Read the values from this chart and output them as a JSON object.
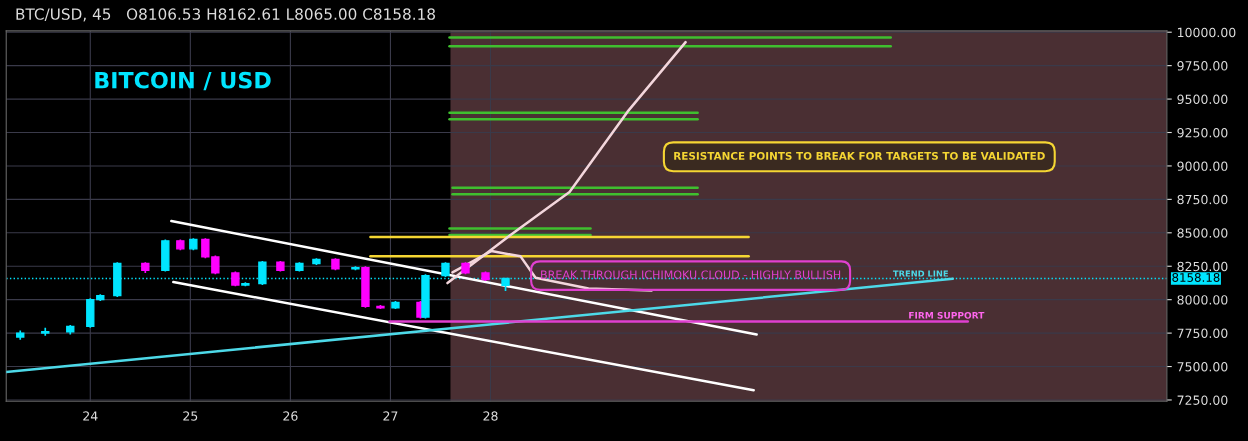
{
  "chart_data": {
    "type": "candlestick",
    "title": "BITCOIN / USD",
    "subtitle": "BTC/USD, 45   O8106.53 H8162.61 L8065.00 C8158.18",
    "x": [
      23.3,
      23.55,
      23.8,
      24.0,
      24.1,
      24.27,
      24.55,
      24.75,
      24.9,
      25.03,
      25.15,
      25.25,
      25.45,
      25.55,
      25.72,
      25.9,
      26.09,
      26.26,
      26.45,
      26.65,
      26.75,
      26.9,
      27.05,
      27.3,
      27.35,
      27.55,
      27.75,
      27.95,
      28.15
    ],
    "ohlc": [
      [
        7720,
        7770,
        7700,
        7750
      ],
      [
        7750,
        7790,
        7730,
        7760
      ],
      [
        7760,
        7810,
        7740,
        7800
      ],
      [
        7800,
        8010,
        7790,
        8000
      ],
      [
        8000,
        8040,
        7990,
        8030
      ],
      [
        8030,
        8280,
        8020,
        8270
      ],
      [
        8270,
        8280,
        8200,
        8220
      ],
      [
        8220,
        8450,
        8210,
        8440
      ],
      [
        8440,
        8450,
        8370,
        8380
      ],
      [
        8380,
        8460,
        8370,
        8450
      ],
      [
        8450,
        8460,
        8310,
        8320
      ],
      [
        8320,
        8330,
        8190,
        8200
      ],
      [
        8200,
        8210,
        8100,
        8110
      ],
      [
        8110,
        8130,
        8100,
        8120
      ],
      [
        8120,
        8290,
        8110,
        8280
      ],
      [
        8280,
        8290,
        8210,
        8220
      ],
      [
        8220,
        8280,
        8210,
        8270
      ],
      [
        8270,
        8310,
        8260,
        8300
      ],
      [
        8300,
        8310,
        8220,
        8230
      ],
      [
        8230,
        8250,
        8220,
        8240
      ],
      [
        8240,
        8250,
        7940,
        7950
      ],
      [
        7950,
        7960,
        7930,
        7940
      ],
      [
        7940,
        7990,
        7930,
        7980
      ],
      [
        7980,
        7990,
        7860,
        7870
      ],
      [
        7870,
        8190,
        7860,
        8180
      ],
      [
        8180,
        8280,
        8170,
        8270
      ],
      [
        8270,
        8280,
        8190,
        8200
      ],
      [
        8200,
        8210,
        8140,
        8150
      ],
      [
        8106.53,
        8162.61,
        8065.0,
        8158.18
      ]
    ],
    "series": [
      {
        "type": "line",
        "color": "#3fbf2f",
        "x": [
          27.59,
          32.0
        ],
        "values": [
          9960,
          9960
        ]
      },
      {
        "type": "line",
        "color": "#3fbf2f",
        "x": [
          27.59,
          32.0
        ],
        "values": [
          9895,
          9895
        ]
      },
      {
        "type": "line",
        "color": "#3fbf2f",
        "x": [
          27.59,
          30.07
        ],
        "values": [
          9397,
          9397
        ]
      },
      {
        "type": "line",
        "color": "#3fbf2f",
        "x": [
          27.59,
          30.07
        ],
        "values": [
          9349,
          9349
        ]
      },
      {
        "type": "line",
        "color": "#3fbf2f",
        "x": [
          27.62,
          30.07
        ],
        "values": [
          8837,
          8837
        ]
      },
      {
        "type": "line",
        "color": "#3fbf2f",
        "x": [
          27.62,
          30.07
        ],
        "values": [
          8789,
          8789
        ]
      },
      {
        "type": "line",
        "color": "#3fbf2f",
        "x": [
          27.59,
          29.0
        ],
        "values": [
          8532,
          8532
        ]
      },
      {
        "type": "line",
        "color": "#3fbf2f",
        "x": [
          27.59,
          29.0
        ],
        "values": [
          8484,
          8484
        ]
      },
      {
        "type": "line",
        "color": "#f5d633",
        "x": [
          26.8,
          30.58
        ],
        "values": [
          8468,
          8468
        ]
      },
      {
        "type": "line",
        "color": "#f5d633",
        "x": [
          26.8,
          30.58
        ],
        "values": [
          8324,
          8324
        ]
      },
      {
        "type": "line",
        "color": "#ffffff",
        "x": [
          24.81,
          30.66
        ],
        "values": [
          8588,
          7739
        ]
      },
      {
        "type": "line",
        "color": "#ffffff",
        "x": [
          24.83,
          30.63
        ],
        "values": [
          8132,
          7323
        ]
      },
      {
        "type": "line",
        "color": "#4dd9e8",
        "x": [
          23.16,
          32.62
        ],
        "values": [
          7459,
          8156
        ]
      },
      {
        "type": "line",
        "color": "#e040d0",
        "x": [
          26.99,
          32.77
        ],
        "values": [
          7836,
          7836
        ]
      },
      {
        "type": "line",
        "color": "#f3d6dc",
        "x": [
          27.57,
          28.2,
          28.79,
          29.37,
          29.95
        ],
        "values": [
          8124,
          8484,
          8805,
          9406,
          9926
        ]
      },
      {
        "type": "line",
        "color": "#f3d6dc",
        "x": [
          27.62,
          28.01,
          28.3,
          28.45,
          28.98,
          29.61
        ],
        "values": [
          8204,
          8364,
          8324,
          8164,
          8084,
          8068
        ]
      }
    ],
    "ref_lines": [
      {
        "axis": "y",
        "value": 8158.18,
        "label": "8158.18",
        "color": "#00e5ff",
        "line_style": "dotted"
      }
    ],
    "bands": [
      {
        "axis": "x",
        "from": 27.6,
        "to": 34.76,
        "color": "#4a2f33"
      }
    ],
    "annotations": [
      "RESISTANCE POINTS TO BREAK FOR TARGETS TO BE VALIDATED",
      {
        "text": "BREAK THROUGH ICHIMOKU CLOUD - HIGHLY BULLISH",
        "x": 30.0,
        "y": 8180
      },
      {
        "text": "TREND LINE",
        "x": 32.3,
        "y": 8190
      },
      "FIRM SUPPORT"
    ],
    "xlim": [
      23.16,
      34.76
    ],
    "xticks": [
      24,
      25,
      26,
      27,
      28
    ],
    "ylim": [
      7240,
      10010
    ],
    "yticks": [
      {
        "value": 7250,
        "label": "7250.00"
      },
      {
        "value": 7500,
        "label": "7500.00"
      },
      {
        "value": 7750,
        "label": "7750.00"
      },
      {
        "value": 8000,
        "label": "8000.00"
      },
      {
        "value": 8250,
        "label": "8250.00"
      },
      {
        "value": 8500,
        "label": "8500.00"
      },
      {
        "value": 8750,
        "label": "8750.00"
      },
      {
        "value": 9000,
        "label": "9000.00"
      },
      {
        "value": 9250,
        "label": "9250.00"
      },
      {
        "value": 9500,
        "label": "9500.00"
      },
      {
        "value": 9750,
        "label": "9750.00"
      },
      {
        "value": 10000,
        "label": "10000.00"
      }
    ],
    "grid": true
  }
}
